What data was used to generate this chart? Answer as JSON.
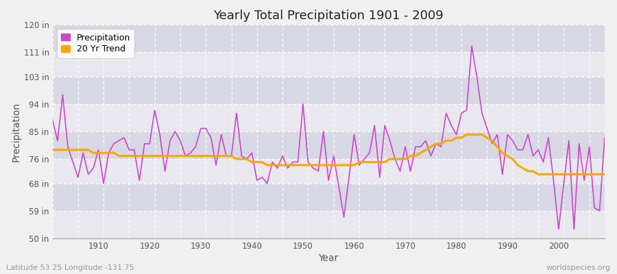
{
  "title": "Yearly Total Precipitation 1901 - 2009",
  "xlabel": "Year",
  "ylabel": "Precipitation",
  "lat_lon_label": "Latitude 53.25 Longitude -131.75",
  "watermark": "worldspecies.org",
  "ylim": [
    50,
    120
  ],
  "ytick_labels": [
    "50 in",
    "59 in",
    "68 in",
    "76 in",
    "85 in",
    "94 in",
    "103 in",
    "111 in",
    "120 in"
  ],
  "ytick_values": [
    50,
    59,
    68,
    76,
    85,
    94,
    103,
    111,
    120
  ],
  "xlim": [
    1901,
    2009
  ],
  "bg_color1": "#e8e8ee",
  "bg_color2": "#d8d8e4",
  "grid_color": "#ffffff",
  "precip_color": "#cc44cc",
  "trend_color": "#ffa500",
  "years": [
    1901,
    1902,
    1903,
    1904,
    1905,
    1906,
    1907,
    1908,
    1909,
    1910,
    1911,
    1912,
    1913,
    1914,
    1915,
    1916,
    1917,
    1918,
    1919,
    1920,
    1921,
    1922,
    1923,
    1924,
    1925,
    1926,
    1927,
    1928,
    1929,
    1930,
    1931,
    1932,
    1933,
    1934,
    1935,
    1936,
    1937,
    1938,
    1939,
    1940,
    1941,
    1942,
    1943,
    1944,
    1945,
    1946,
    1947,
    1948,
    1949,
    1950,
    1951,
    1952,
    1953,
    1954,
    1955,
    1956,
    1957,
    1958,
    1959,
    1960,
    1961,
    1962,
    1963,
    1964,
    1965,
    1966,
    1967,
    1968,
    1969,
    1970,
    1971,
    1972,
    1973,
    1974,
    1975,
    1976,
    1977,
    1978,
    1979,
    1980,
    1981,
    1982,
    1983,
    1984,
    1985,
    1986,
    1987,
    1988,
    1989,
    1990,
    1991,
    1992,
    1993,
    1994,
    1995,
    1996,
    1997,
    1998,
    1999,
    2000,
    2001,
    2002,
    2003,
    2004,
    2005,
    2006,
    2007,
    2008,
    2009
  ],
  "precip": [
    89,
    82,
    97,
    80,
    75,
    70,
    78,
    71,
    73,
    79,
    68,
    78,
    81,
    82,
    83,
    79,
    79,
    69,
    81,
    81,
    92,
    84,
    72,
    82,
    85,
    82,
    77,
    78,
    80,
    86,
    86,
    83,
    74,
    84,
    77,
    77,
    91,
    77,
    76,
    78,
    69,
    70,
    68,
    75,
    73,
    77,
    73,
    75,
    75,
    94,
    75,
    73,
    72,
    85,
    69,
    77,
    67,
    57,
    70,
    84,
    74,
    76,
    78,
    87,
    70,
    87,
    82,
    76,
    72,
    80,
    72,
    80,
    80,
    82,
    77,
    81,
    80,
    91,
    87,
    84,
    91,
    92,
    113,
    103,
    91,
    86,
    81,
    84,
    71,
    84,
    82,
    79,
    79,
    84,
    77,
    79,
    75,
    83,
    69,
    53,
    68,
    82,
    53,
    81,
    69,
    80,
    60,
    59,
    83
  ],
  "trend": [
    79,
    79,
    79,
    79,
    79,
    79,
    79,
    79,
    78,
    78,
    78,
    78,
    78,
    77,
    77,
    77,
    77,
    77,
    77,
    77,
    77,
    77,
    77,
    77,
    77,
    77,
    77,
    77,
    77,
    77,
    77,
    77,
    77,
    77,
    77,
    77,
    76,
    76,
    76,
    75,
    75,
    75,
    74,
    74,
    74,
    74,
    74,
    74,
    74,
    74,
    74,
    74,
    74,
    74,
    74,
    74,
    74,
    74,
    74,
    74,
    75,
    75,
    75,
    75,
    75,
    75,
    76,
    76,
    76,
    76,
    77,
    77,
    78,
    79,
    80,
    81,
    81,
    82,
    82,
    83,
    83,
    84,
    84,
    84,
    84,
    83,
    82,
    80,
    78,
    77,
    76,
    74,
    73,
    72,
    72,
    71,
    71,
    71,
    71,
    71,
    71,
    71,
    71,
    71,
    71,
    71,
    71,
    71,
    71
  ]
}
